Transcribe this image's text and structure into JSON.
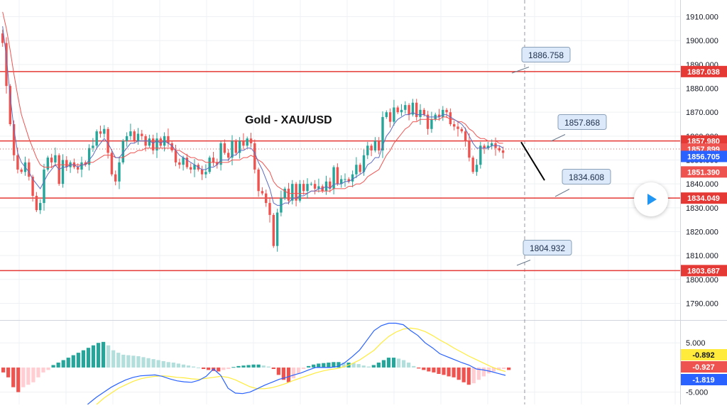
{
  "chart_data": [
    {
      "type": "candlestick",
      "title": "Gold - XAU/USD",
      "ylim": [
        1783,
        1917
      ],
      "y_ticks": [
        1790,
        1800,
        1810,
        1820,
        1830,
        1840,
        1850,
        1860,
        1870,
        1880,
        1890,
        1900,
        1910
      ],
      "y_tick_labels": [
        "1790.000",
        "1800.000",
        "1810.000",
        "1820.000",
        "1830.000",
        "1840.000",
        "1850.000",
        "1860.000",
        "1870.000",
        "1880.000",
        "1890.000",
        "1900.000",
        "1910.000"
      ],
      "grid": true,
      "colors": {
        "up": "#26a69a",
        "down": "#ef5350",
        "level": "#e53935",
        "fast_ma": "#5c6bc0",
        "slow_ma": "#ef5350",
        "trend": "#000000"
      },
      "closes": [
        1899,
        1881,
        1865,
        1852,
        1846,
        1845,
        1849,
        1843,
        1835,
        1829,
        1832,
        1846,
        1851,
        1849,
        1852,
        1840,
        1850,
        1847,
        1849,
        1847,
        1846,
        1849,
        1848,
        1855,
        1856,
        1862,
        1861,
        1863,
        1853,
        1844,
        1841,
        1849,
        1858,
        1860,
        1862,
        1858,
        1861,
        1860,
        1856,
        1859,
        1854,
        1859,
        1856,
        1860,
        1857,
        1854,
        1849,
        1848,
        1851,
        1847,
        1846,
        1848,
        1846,
        1844,
        1845,
        1851,
        1849,
        1848,
        1857,
        1853,
        1851,
        1858,
        1853,
        1858,
        1856,
        1859,
        1857,
        1846,
        1837,
        1836,
        1832,
        1827,
        1814,
        1828,
        1834,
        1838,
        1833,
        1840,
        1833,
        1840,
        1837,
        1840,
        1840,
        1838,
        1839,
        1837,
        1841,
        1838,
        1847,
        1840,
        1842,
        1842,
        1841,
        1844,
        1848,
        1845,
        1852,
        1856,
        1854,
        1858,
        1854,
        1868,
        1870,
        1866,
        1872,
        1870,
        1871,
        1873,
        1869,
        1874,
        1868,
        1871,
        1869,
        1863,
        1867,
        1869,
        1868,
        1871,
        1870,
        1865,
        1864,
        1863,
        1862,
        1858,
        1851,
        1845,
        1848,
        1856,
        1855,
        1856,
        1857,
        1855,
        1854,
        1853
      ],
      "fast_ma": [
        1906,
        1893,
        1877,
        1863,
        1853,
        1849,
        1847,
        1845,
        1842,
        1840,
        1838,
        1841,
        1844,
        1846,
        1848,
        1846,
        1847,
        1847,
        1848,
        1848,
        1847,
        1848,
        1848,
        1850,
        1852,
        1855,
        1857,
        1859,
        1857,
        1854,
        1851,
        1851,
        1853,
        1855,
        1857,
        1857,
        1858,
        1858,
        1858,
        1858,
        1857,
        1858,
        1857,
        1858,
        1857,
        1856,
        1854,
        1852,
        1851,
        1850,
        1849,
        1848,
        1847,
        1846,
        1846,
        1847,
        1847,
        1848,
        1850,
        1850,
        1850,
        1852,
        1852,
        1854,
        1854,
        1855,
        1855,
        1853,
        1849,
        1846,
        1842,
        1838,
        1832,
        1831,
        1831,
        1832,
        1832,
        1834,
        1834,
        1835,
        1835,
        1836,
        1837,
        1837,
        1838,
        1838,
        1839,
        1838,
        1840,
        1840,
        1840,
        1841,
        1841,
        1842,
        1843,
        1844,
        1845,
        1848,
        1849,
        1851,
        1851,
        1856,
        1860,
        1862,
        1865,
        1867,
        1868,
        1869,
        1869,
        1870,
        1869,
        1869,
        1869,
        1868,
        1868,
        1868,
        1868,
        1869,
        1869,
        1868,
        1867,
        1866,
        1865,
        1863,
        1860,
        1857,
        1855,
        1855,
        1855,
        1855,
        1856,
        1856,
        1856,
        1855
      ],
      "slow_ma": [
        1912,
        1905,
        1896,
        1886,
        1877,
        1869,
        1864,
        1859,
        1855,
        1851,
        1848,
        1847,
        1847,
        1847,
        1848,
        1848,
        1848,
        1848,
        1848,
        1848,
        1848,
        1848,
        1848,
        1849,
        1849,
        1850,
        1851,
        1852,
        1852,
        1852,
        1851,
        1851,
        1851,
        1852,
        1853,
        1853,
        1854,
        1854,
        1855,
        1855,
        1855,
        1855,
        1855,
        1855,
        1855,
        1855,
        1854,
        1854,
        1853,
        1852,
        1851,
        1851,
        1850,
        1850,
        1849,
        1849,
        1849,
        1849,
        1849,
        1849,
        1849,
        1850,
        1850,
        1850,
        1851,
        1851,
        1852,
        1851,
        1850,
        1849,
        1847,
        1845,
        1841,
        1839,
        1838,
        1837,
        1836,
        1836,
        1836,
        1836,
        1836,
        1836,
        1837,
        1837,
        1837,
        1837,
        1837,
        1837,
        1838,
        1838,
        1838,
        1838,
        1839,
        1839,
        1840,
        1840,
        1841,
        1843,
        1844,
        1845,
        1846,
        1849,
        1852,
        1854,
        1857,
        1859,
        1861,
        1863,
        1864,
        1866,
        1866,
        1867,
        1867,
        1867,
        1867,
        1867,
        1867,
        1868,
        1868,
        1867,
        1867,
        1866,
        1866,
        1865,
        1863,
        1862,
        1860,
        1859,
        1859,
        1858,
        1858,
        1858,
        1857,
        1857
      ],
      "levels": [
        {
          "label": "1887.038",
          "value": 1887.038
        },
        {
          "label": "1857.980",
          "value": 1857.98
        },
        {
          "label": "1834.049",
          "value": 1834.049
        },
        {
          "label": "1803.687",
          "value": 1803.687
        }
      ],
      "annotations": [
        {
          "label": "1886.758"
        },
        {
          "label": "1857.868"
        },
        {
          "label": "1834.608"
        },
        {
          "label": "1804.932"
        }
      ],
      "price_labels": [
        {
          "label": "1857.899",
          "value": 1854.6
        },
        {
          "label": "1856.705",
          "value": 1851.5
        },
        {
          "label": "1851.390",
          "value": 1845.0
        }
      ],
      "trend_line": {
        "from": 1857.5,
        "to": 1841.5
      }
    },
    {
      "type": "macd",
      "ylim": [
        -7.5,
        9.5
      ],
      "y_ticks": [
        5,
        -5
      ],
      "y_tick_labels": [
        "5.000",
        "-5.000"
      ],
      "colors": {
        "hist_up_strong": "#26a69a",
        "hist_up_weak": "#b2dfdb",
        "hist_down_strong": "#ef5350",
        "hist_down_weak": "#ffcdd2",
        "macd": "#2962ff",
        "signal": "#ffeb3b"
      },
      "histogram": [
        -1,
        -2,
        -4,
        -5,
        -4,
        -3.5,
        -3,
        -2,
        -1,
        -0.5,
        0.5,
        1,
        1.5,
        2,
        2.5,
        3,
        3.5,
        4,
        4.5,
        5,
        5.2,
        4.5,
        3.5,
        3,
        2.6,
        2.5,
        2.4,
        2.3,
        2.1,
        1.9,
        1.7,
        1.5,
        1.3,
        1.1,
        1.0,
        0.8,
        0.6,
        0.4,
        0.2,
        0,
        -0.3,
        -0.5,
        -0.7,
        -0.8,
        -0.5,
        -0.3,
        0.1,
        0.3,
        0.4,
        0.5,
        0.6,
        0.6,
        0.4,
        0.2,
        -0.3,
        -1.5,
        -2.5,
        -3.0,
        -2.2,
        -1.2,
        -0.3,
        0.3,
        0.6,
        0.8,
        0.9,
        1.0,
        1.1,
        1.1,
        1.0,
        1.0,
        0.9,
        0.7,
        0.4,
        0.2,
        0.5,
        1.0,
        1.5,
        2.0,
        2.0,
        1.8,
        1.5,
        1.0,
        0.3,
        -0.2,
        -0.5,
        -0.8,
        -1.0,
        -1.3,
        -1.5,
        -1.8,
        -2.0,
        -2.5,
        -3.0,
        -3.5,
        -3.2,
        -2.5,
        -1.8,
        -1.2,
        -0.8,
        -0.5,
        -0.3,
        -0.5
      ],
      "macd": [
        -11,
        -10,
        -8.5,
        -7.2,
        -6,
        -5,
        -4,
        -3.2,
        -2.5,
        -2,
        -1.7,
        -1.6,
        -1.5,
        -1.8,
        -2.3,
        -2.7,
        -2.9,
        -3,
        -2.6,
        -1.8,
        -0.3,
        -1.6,
        -4.2,
        -5.2,
        -5.3,
        -5,
        -4.3,
        -3.6,
        -3,
        -2.4,
        -2,
        -1.5,
        -1.1,
        -0.5,
        0,
        0,
        0,
        0.2,
        1,
        2.2,
        3.5,
        5.5,
        7.5,
        8.5,
        9,
        9,
        8.7,
        7.5,
        6.5,
        5,
        4,
        2.8,
        2.2,
        1.6,
        1,
        0.5,
        -0.3,
        -0.5,
        -0.8,
        -1.2,
        -1.6
      ],
      "signal": [
        -12,
        -11,
        -9.5,
        -8.5,
        -7.5,
        -6.2,
        -5.2,
        -4.2,
        -3.5,
        -2.8,
        -2.3,
        -2.0,
        -1.8,
        -1.7,
        -1.8,
        -2.0,
        -2.1,
        -2.3,
        -2.4,
        -2.2,
        -2.0,
        -1.8,
        -2.0,
        -2.5,
        -3.2,
        -3.9,
        -4.3,
        -4.3,
        -4.1,
        -3.7,
        -3.2,
        -2.6,
        -2.1,
        -1.6,
        -1.1,
        -0.7,
        -0.4,
        -0.2,
        0.2,
        0.8,
        1.5,
        2.5,
        3.5,
        5,
        6.3,
        7.2,
        7.8,
        8.0,
        7.8,
        7.3,
        6.5,
        5.6,
        4.8,
        3.9,
        3.1,
        2.3,
        1.6,
        0.9,
        0.2,
        -0.4,
        -0.8
      ],
      "value_labels": [
        {
          "label": "-0.892"
        },
        {
          "label": "-0.927"
        },
        {
          "label": "-1.819"
        }
      ]
    }
  ],
  "play_icon": "play-icon"
}
